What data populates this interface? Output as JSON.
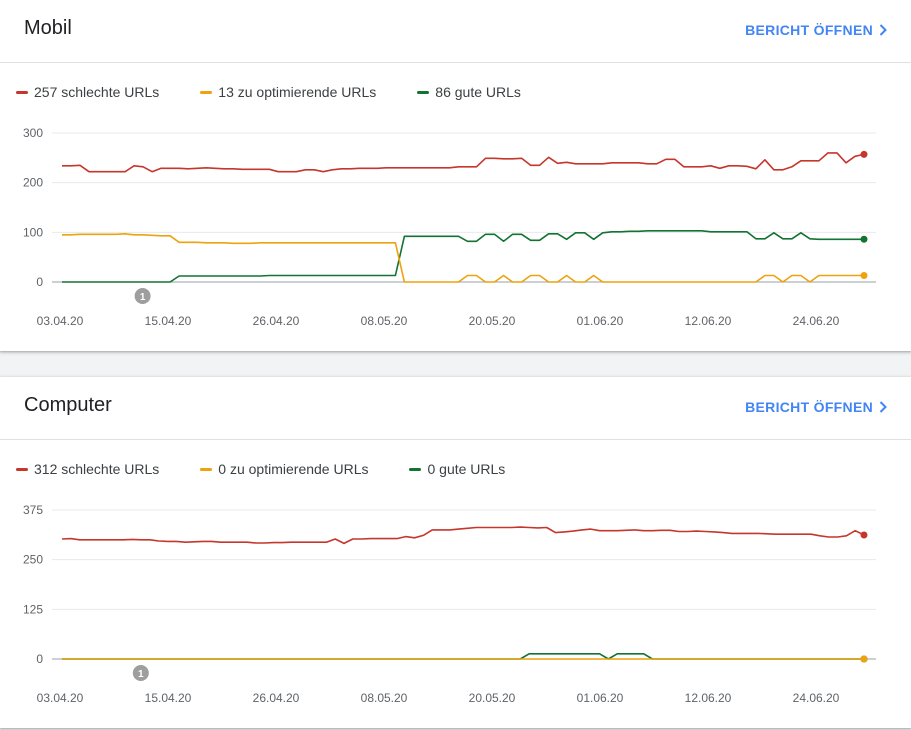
{
  "colors": {
    "bad": "#c5372c",
    "needs": "#eea20c",
    "good": "#137333",
    "link": "#4285f4"
  },
  "cards": [
    {
      "title": "Mobil",
      "open_report": "BERICHT ÖFFNEN",
      "legend": {
        "bad": "257 schlechte URLs",
        "needs": "13 zu optimierende URLs",
        "good": "86 gute URLs"
      },
      "annotation": "1"
    },
    {
      "title": "Computer",
      "open_report": "BERICHT ÖFFNEN",
      "legend": {
        "bad": "312 schlechte URLs",
        "needs": "0 zu optimierende URLs",
        "good": "0 gute URLs"
      },
      "annotation": "1"
    }
  ],
  "chart_data": [
    {
      "type": "line",
      "ylim": [
        0,
        300
      ],
      "yticks": [
        "300",
        "200",
        "100",
        "0"
      ],
      "xticks": [
        "03.04.20",
        "15.04.20",
        "26.04.20",
        "08.05.20",
        "20.05.20",
        "01.06.20",
        "12.06.20",
        "24.06.20"
      ],
      "annotation_day": 9,
      "series": [
        {
          "name": "257 schlechte URLs",
          "key": "bad",
          "values": [
            234,
            234,
            235,
            222,
            222,
            222,
            222,
            222,
            234,
            232,
            222,
            229,
            229,
            229,
            228,
            229,
            230,
            229,
            228,
            228,
            227,
            227,
            227,
            227,
            222,
            222,
            222,
            226,
            226,
            222,
            226,
            228,
            228,
            229,
            229,
            229,
            230,
            230,
            230,
            230,
            230,
            230,
            230,
            230,
            232,
            232,
            232,
            249,
            249,
            248,
            248,
            249,
            235,
            235,
            251,
            239,
            241,
            238,
            238,
            238,
            238,
            240,
            240,
            240,
            240,
            238,
            238,
            247,
            247,
            232,
            232,
            232,
            234,
            229,
            234,
            234,
            233,
            228,
            246,
            226,
            226,
            232,
            244,
            244,
            244,
            260,
            260,
            240,
            253,
            257
          ]
        },
        {
          "name": "13 zu optimierende URLs",
          "key": "needs",
          "values": [
            95,
            95,
            96,
            96,
            96,
            96,
            96,
            97,
            95,
            95,
            94,
            93,
            93,
            80,
            80,
            80,
            79,
            79,
            79,
            78,
            78,
            78,
            79,
            79,
            79,
            79,
            79,
            79,
            79,
            79,
            79,
            79,
            79,
            79,
            79,
            79,
            79,
            79,
            0,
            0,
            0,
            0,
            0,
            0,
            0,
            13,
            13,
            0,
            0,
            13,
            0,
            0,
            13,
            13,
            0,
            0,
            13,
            0,
            0,
            13,
            0,
            0,
            0,
            0,
            0,
            0,
            0,
            0,
            0,
            0,
            0,
            0,
            0,
            0,
            0,
            0,
            0,
            0,
            13,
            13,
            0,
            13,
            13,
            0,
            13,
            13,
            13,
            13,
            13,
            13
          ]
        },
        {
          "name": "86 gute URLs",
          "key": "good",
          "values": [
            0,
            0,
            0,
            0,
            0,
            0,
            0,
            0,
            0,
            0,
            0,
            0,
            0,
            12,
            12,
            12,
            12,
            12,
            12,
            12,
            12,
            12,
            12,
            13,
            13,
            13,
            13,
            13,
            13,
            13,
            13,
            13,
            13,
            13,
            13,
            13,
            13,
            13,
            92,
            92,
            92,
            92,
            92,
            92,
            92,
            82,
            82,
            96,
            96,
            82,
            96,
            96,
            84,
            84,
            97,
            97,
            86,
            99,
            99,
            86,
            99,
            101,
            101,
            102,
            102,
            103,
            103,
            103,
            103,
            103,
            103,
            103,
            101,
            101,
            101,
            101,
            101,
            87,
            87,
            99,
            87,
            87,
            99,
            87,
            86,
            86,
            86,
            86,
            86,
            86
          ]
        }
      ]
    },
    {
      "type": "line",
      "ylim": [
        0,
        375
      ],
      "yticks": [
        "375",
        "250",
        "125",
        "0"
      ],
      "xticks": [
        "03.04.20",
        "15.04.20",
        "26.04.20",
        "08.05.20",
        "20.05.20",
        "01.06.20",
        "12.06.20",
        "24.06.20"
      ],
      "annotation_day": 9,
      "series": [
        {
          "name": "312 schlechte URLs",
          "key": "bad",
          "values": [
            302,
            303,
            300,
            300,
            300,
            300,
            300,
            300,
            301,
            300,
            300,
            297,
            296,
            296,
            294,
            295,
            296,
            296,
            294,
            294,
            294,
            294,
            292,
            292,
            293,
            293,
            294,
            294,
            294,
            294,
            294,
            302,
            291,
            302,
            302,
            303,
            303,
            303,
            303,
            308,
            305,
            311,
            325,
            325,
            325,
            327,
            329,
            331,
            331,
            331,
            331,
            331,
            332,
            331,
            330,
            331,
            318,
            320,
            322,
            325,
            327,
            323,
            323,
            323,
            324,
            325,
            323,
            323,
            324,
            324,
            321,
            321,
            322,
            321,
            320,
            318,
            316,
            316,
            316,
            316,
            315,
            314,
            314,
            314,
            314,
            314,
            310,
            307,
            307,
            310,
            323,
            312
          ]
        },
        {
          "name": "0 zu optimierende URLs",
          "key": "needs",
          "values": [
            0,
            0,
            0,
            0,
            0,
            0,
            0,
            0,
            0,
            0,
            0,
            0,
            0,
            0,
            0,
            0,
            0,
            0,
            0,
            0,
            0,
            0,
            0,
            0,
            0,
            0,
            0,
            0,
            0,
            0,
            0,
            0,
            0,
            0,
            0,
            0,
            0,
            0,
            0,
            0,
            0,
            0,
            0,
            0,
            0,
            0,
            0,
            0,
            0,
            0,
            0,
            0,
            0,
            0,
            0,
            0,
            0,
            0,
            0,
            0,
            0,
            0,
            0,
            0,
            0,
            0,
            0,
            0,
            0,
            0,
            0,
            0,
            0,
            0,
            0,
            0,
            0,
            0,
            0,
            0,
            0,
            0,
            0,
            0,
            0,
            0,
            0,
            0,
            0,
            0,
            0,
            0
          ]
        },
        {
          "name": "0 gute URLs",
          "key": "good",
          "values": [
            0,
            0,
            0,
            0,
            0,
            0,
            0,
            0,
            0,
            0,
            0,
            0,
            0,
            0,
            0,
            0,
            0,
            0,
            0,
            0,
            0,
            0,
            0,
            0,
            0,
            0,
            0,
            0,
            0,
            0,
            0,
            0,
            0,
            0,
            0,
            0,
            0,
            0,
            0,
            0,
            0,
            0,
            0,
            0,
            0,
            0,
            0,
            0,
            0,
            0,
            0,
            0,
            0,
            13,
            13,
            13,
            13,
            13,
            13,
            13,
            13,
            13,
            0,
            13,
            13,
            13,
            13,
            0,
            0,
            0,
            0,
            0,
            0,
            0,
            0,
            0,
            0,
            0,
            0,
            0,
            0,
            0,
            0,
            0,
            0,
            0,
            0,
            0,
            0,
            0,
            0,
            0
          ]
        }
      ]
    }
  ]
}
